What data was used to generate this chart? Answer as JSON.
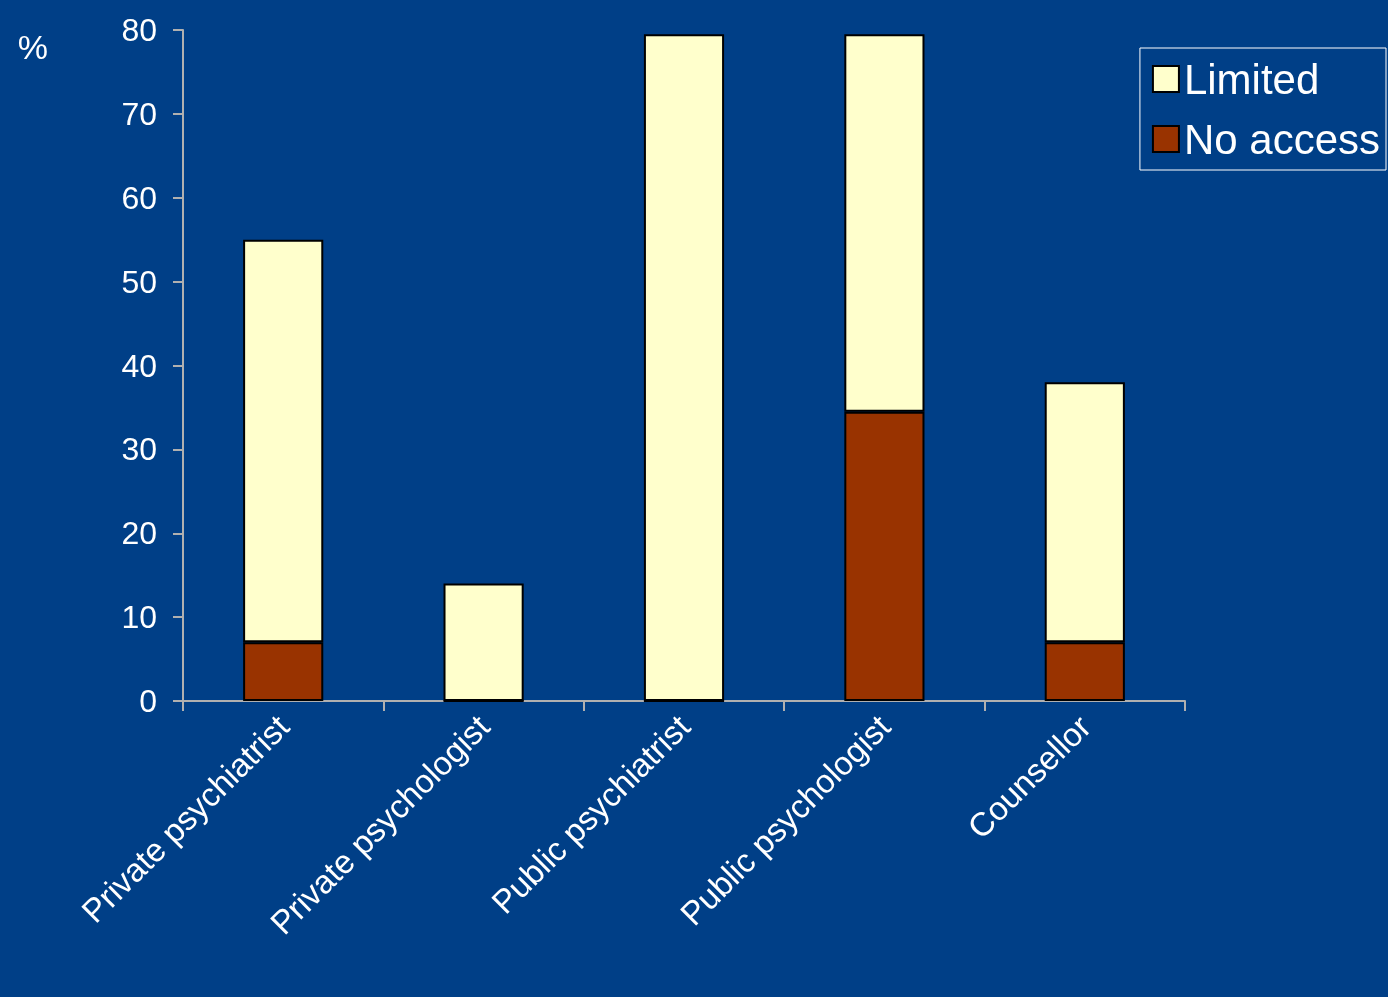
{
  "chart_data": {
    "type": "bar",
    "stacked": true,
    "ylabel": "%",
    "categories": [
      "Private psychiatrist",
      "Private psychologist",
      "Public psychiatrist",
      "Public psychologist",
      "Counsellor"
    ],
    "series": [
      {
        "name": "No access",
        "color": "#993300",
        "values": [
          7,
          0,
          0,
          34.5,
          7
        ]
      },
      {
        "name": "Limited",
        "color": "#ffffcc",
        "values": [
          48,
          14,
          79.5,
          45,
          31
        ]
      }
    ],
    "ylim": [
      0,
      80
    ],
    "yticks": [
      0,
      10,
      20,
      30,
      40,
      50,
      60,
      70,
      80
    ],
    "grid": false,
    "legend": "top right"
  }
}
